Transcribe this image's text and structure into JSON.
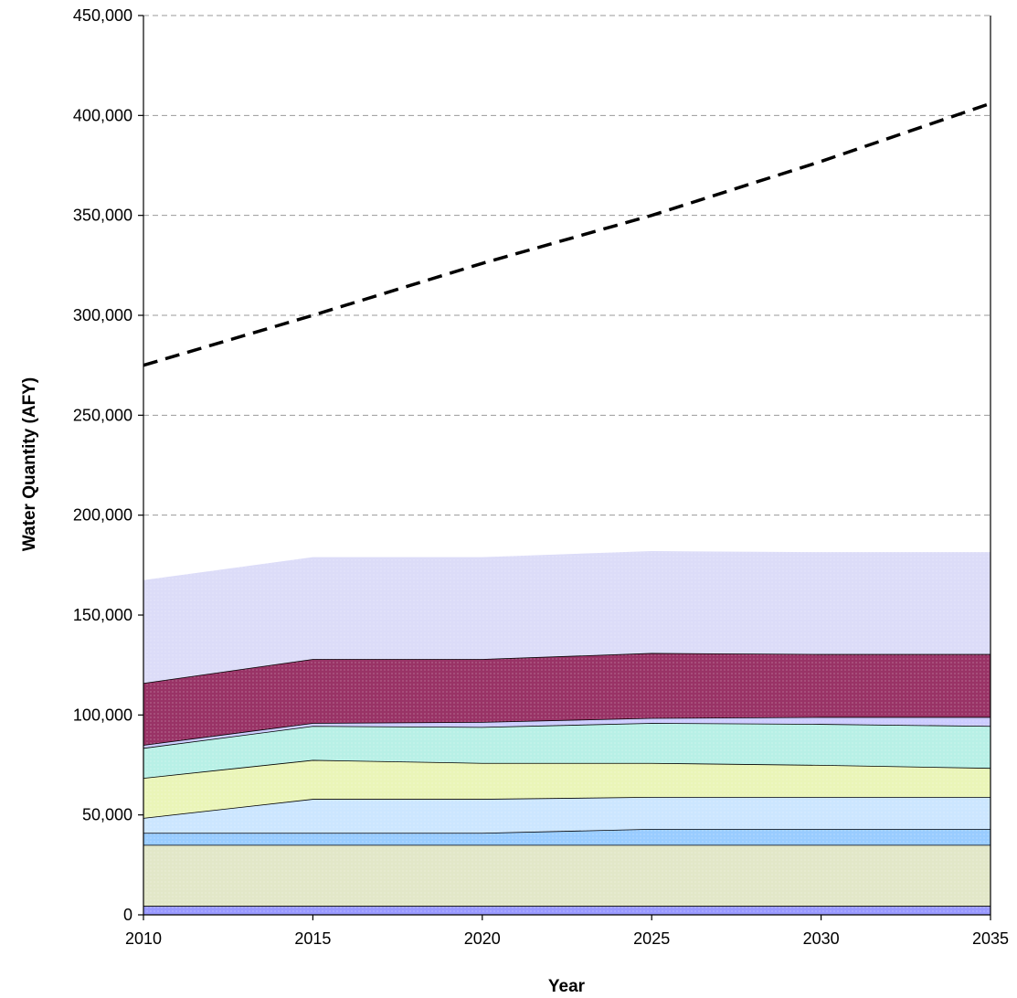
{
  "chart_data": {
    "type": "area",
    "stacked": true,
    "title": "",
    "xlabel": "Year",
    "ylabel": "Water Quantity (AFY)",
    "x": [
      2010,
      2015,
      2020,
      2025,
      2030,
      2035
    ],
    "x_tick_labels": [
      "2010",
      "2015",
      "2020",
      "2025",
      "2030",
      "2035"
    ],
    "xlim": [
      2010,
      2035
    ],
    "ylim": [
      0,
      450000
    ],
    "y_tick_labels": [
      "0",
      "50,000",
      "100,000",
      "150,000",
      "200,000",
      "250,000",
      "300,000",
      "350,000",
      "400,000",
      "450,000"
    ],
    "grid": "horizontal dashed",
    "legend": "none",
    "series": [
      {
        "color": "#9999ff",
        "values": [
          4500,
          4500,
          4500,
          4500,
          4500,
          4500
        ]
      },
      {
        "color": "#e2e7c8",
        "values": [
          30500,
          30500,
          30500,
          30500,
          30500,
          30500
        ]
      },
      {
        "color": "#99ccff",
        "values": [
          6000,
          6000,
          6000,
          8000,
          8000,
          8000
        ]
      },
      {
        "color": "#cce6ff",
        "values": [
          7500,
          17000,
          17000,
          16000,
          16000,
          16000
        ]
      },
      {
        "color": "#eaf5b8",
        "values": [
          20000,
          19500,
          18000,
          17000,
          16000,
          14500
        ]
      },
      {
        "color": "#b8f0e6",
        "values": [
          15000,
          17000,
          18000,
          20000,
          20500,
          21000
        ]
      },
      {
        "color": "#ccccff",
        "values": [
          1500,
          1500,
          2500,
          2500,
          3500,
          4500
        ]
      },
      {
        "color": "#993366",
        "values": [
          31000,
          32000,
          31500,
          32500,
          31500,
          31500
        ]
      },
      {
        "color": "#dcdcf8",
        "values": [
          51500,
          51000,
          51000,
          51000,
          51000,
          51000
        ]
      }
    ],
    "demand_line": {
      "style": "dashed",
      "color": "#000000",
      "values": [
        275000,
        300000,
        326000,
        350000,
        377000,
        406000
      ]
    }
  }
}
